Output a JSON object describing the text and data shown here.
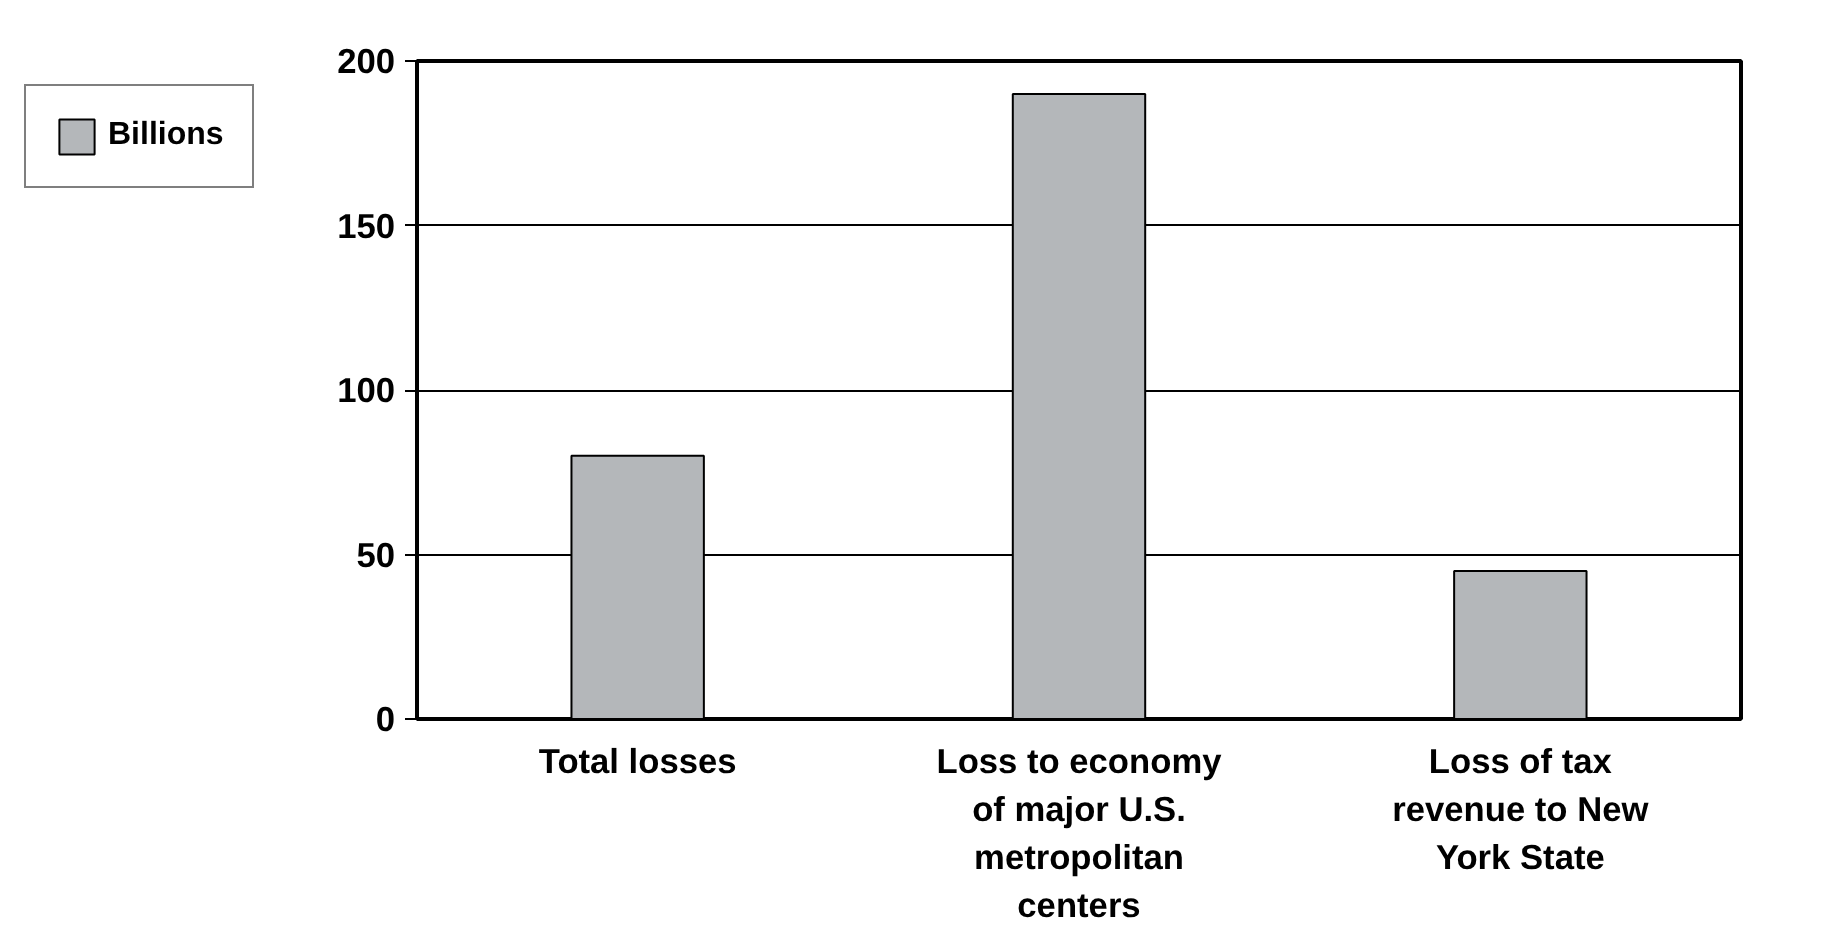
{
  "chart_data": {
    "type": "bar",
    "categories": [
      "Total losses",
      "Loss to economy of major U.S. metropolitan centers",
      "Loss of tax revenue to New York State"
    ],
    "series": [
      {
        "name": "Billions",
        "color": "#b4b7ba",
        "values": [
          80,
          190,
          45
        ]
      }
    ],
    "ylim": [
      0,
      200
    ],
    "yticks": [
      0,
      50,
      100,
      150,
      200
    ],
    "grid": "y",
    "legend": "top left"
  }
}
